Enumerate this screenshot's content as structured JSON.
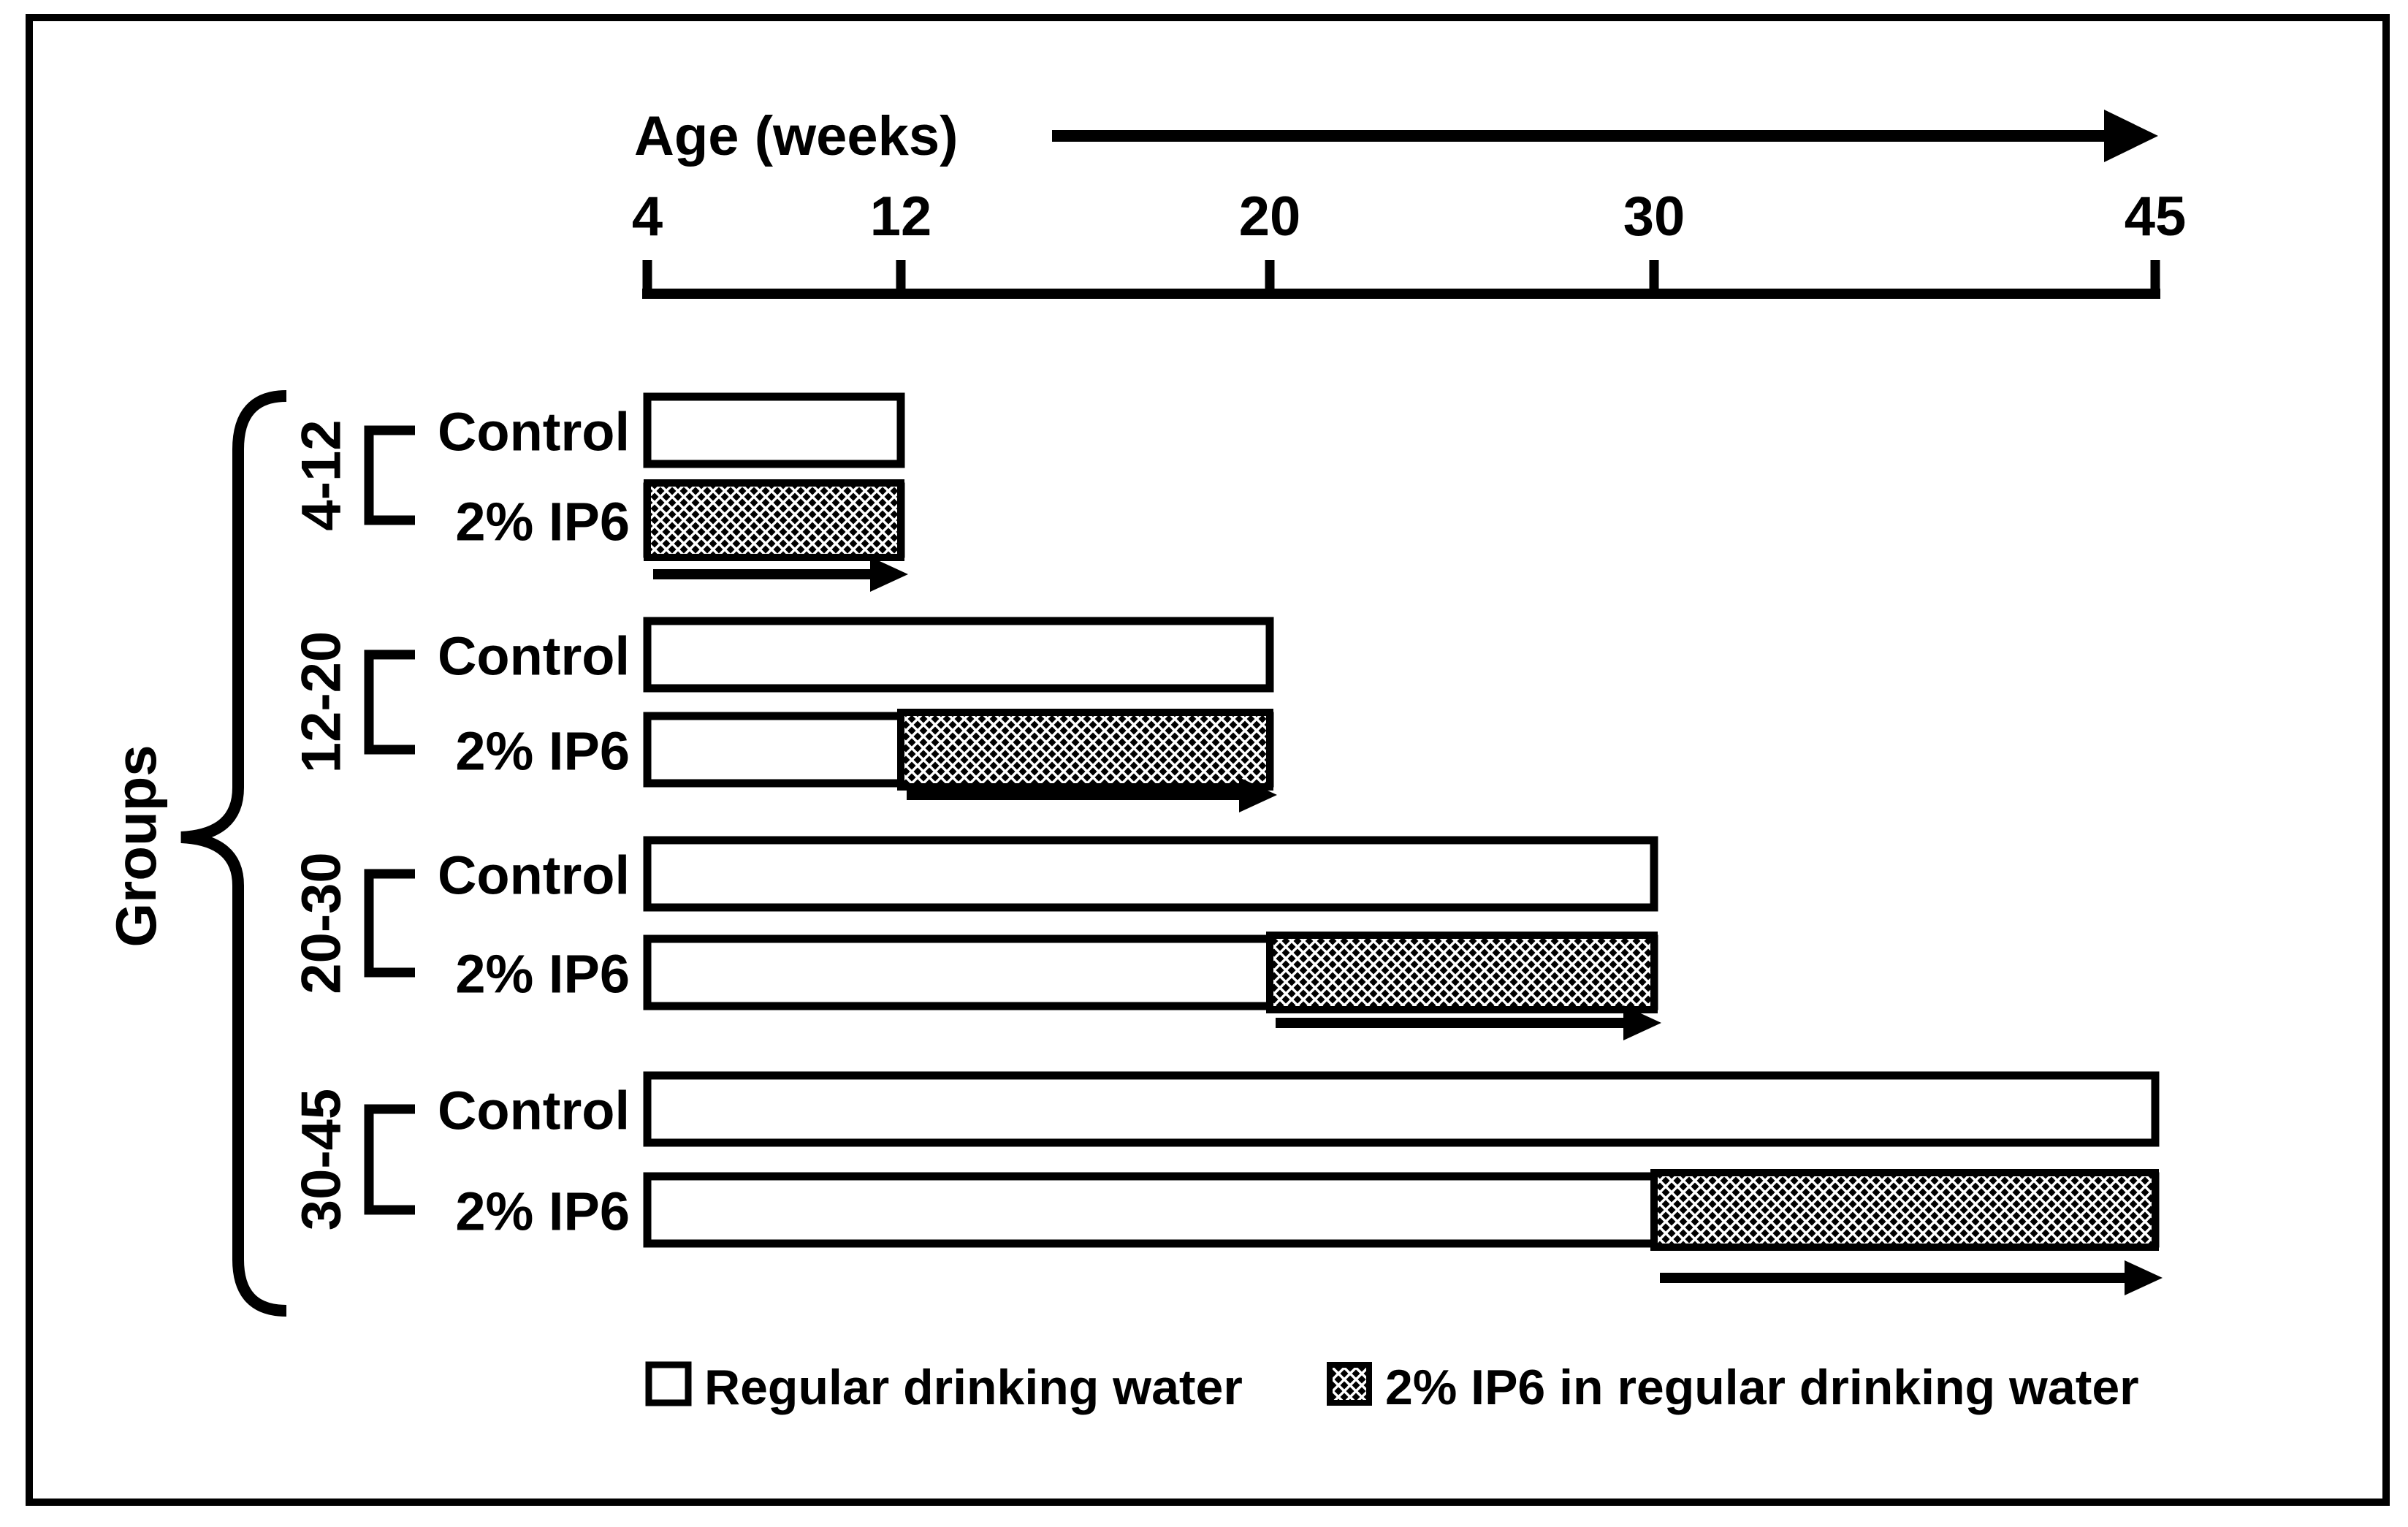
{
  "canvas": {
    "background": "#ffffff",
    "ink": "#000000"
  },
  "chart_data": {
    "type": "timeline",
    "title": "Age (weeks)",
    "xlabel": "Age (weeks)",
    "group_axis_label": "Groups",
    "axis": {
      "title": "Age (weeks)",
      "unit": "weeks",
      "ticks": [
        4,
        12,
        20,
        30,
        45
      ],
      "range": [
        4,
        45
      ]
    },
    "groups": [
      {
        "label": "4-12",
        "rows": [
          {
            "label": "Control",
            "segments": [
              {
                "fill": "water",
                "from": 4,
                "to": 12
              }
            ]
          },
          {
            "label": "2% IP6",
            "segments": [
              {
                "fill": "ip6",
                "from": 4,
                "to": 12
              }
            ]
          }
        ],
        "treatment_arrow": {
          "from": 4,
          "to": 12
        }
      },
      {
        "label": "12-20",
        "rows": [
          {
            "label": "Control",
            "segments": [
              {
                "fill": "water",
                "from": 4,
                "to": 20
              }
            ]
          },
          {
            "label": "2% IP6",
            "segments": [
              {
                "fill": "water",
                "from": 4,
                "to": 12
              },
              {
                "fill": "ip6",
                "from": 12,
                "to": 20
              }
            ]
          }
        ],
        "treatment_arrow": {
          "from": 12,
          "to": 20
        }
      },
      {
        "label": "20-30",
        "rows": [
          {
            "label": "Control",
            "segments": [
              {
                "fill": "water",
                "from": 4,
                "to": 30
              }
            ]
          },
          {
            "label": "2% IP6",
            "segments": [
              {
                "fill": "water",
                "from": 4,
                "to": 20
              },
              {
                "fill": "ip6",
                "from": 20,
                "to": 30
              }
            ]
          }
        ],
        "treatment_arrow": {
          "from": 20,
          "to": 30
        }
      },
      {
        "label": "30-45",
        "rows": [
          {
            "label": "Control",
            "segments": [
              {
                "fill": "water",
                "from": 4,
                "to": 45
              }
            ]
          },
          {
            "label": "2% IP6",
            "segments": [
              {
                "fill": "water",
                "from": 4,
                "to": 30
              },
              {
                "fill": "ip6",
                "from": 30,
                "to": 45
              }
            ]
          }
        ],
        "treatment_arrow": {
          "from": 30,
          "to": 45
        }
      }
    ],
    "legend": [
      {
        "fill": "water",
        "label": "Regular drinking water"
      },
      {
        "fill": "ip6",
        "label": "2% IP6 in regular drinking water"
      }
    ]
  }
}
